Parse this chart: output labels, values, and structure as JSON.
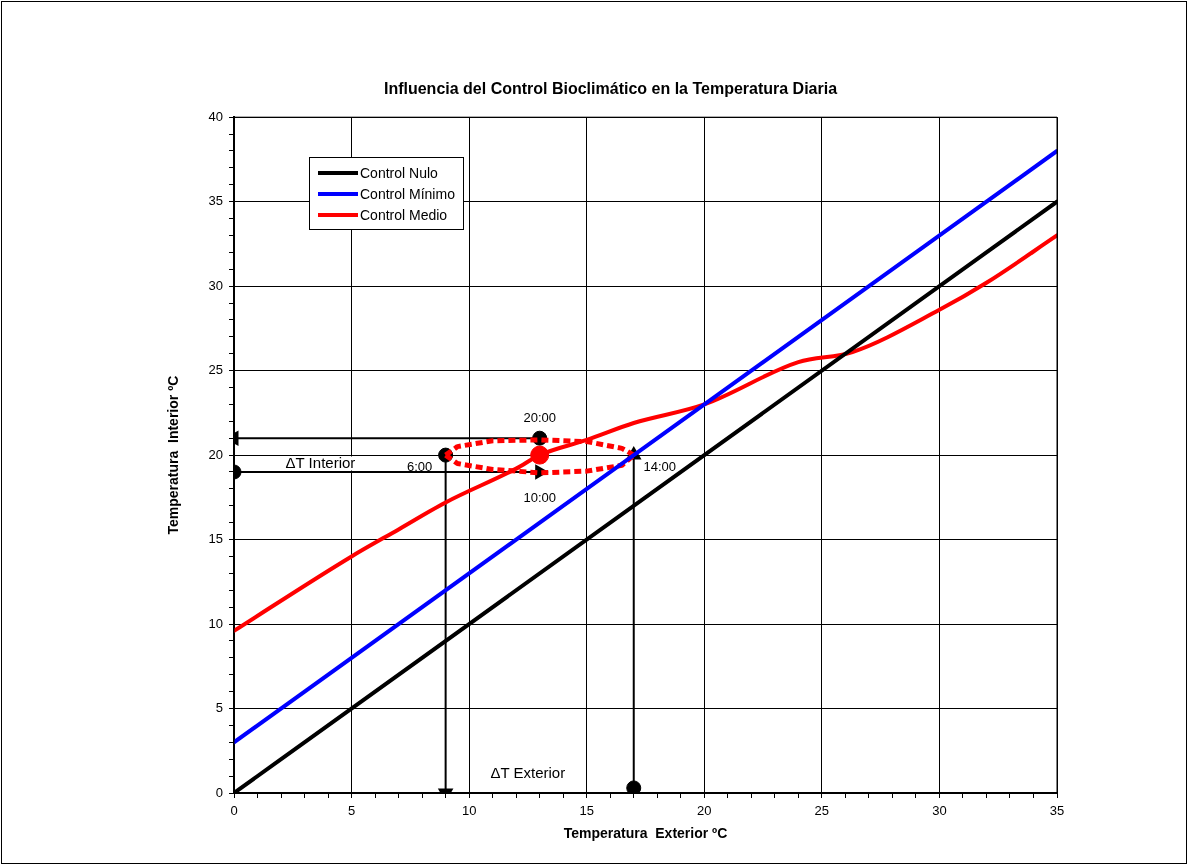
{
  "chart_data": {
    "type": "line",
    "title": "Influencia del Control Bioclimático en la Temperatura Diaria",
    "xlabel": "Temperatura  Exterior ºC",
    "ylabel": "Temperatura  Interior ºC",
    "xlim": [
      0,
      35
    ],
    "ylim": [
      0,
      40
    ],
    "xticks": [
      0,
      {
        "value": 1,
        "label": null
      },
      {
        "value": 2,
        "label": null
      },
      {
        "value": 3,
        "label": null
      },
      {
        "value": 4,
        "label": null
      },
      5,
      {
        "value": 6,
        "label": null
      },
      {
        "value": 7,
        "label": null
      },
      {
        "value": 8,
        "label": null
      },
      {
        "value": 9,
        "label": null
      },
      10,
      {
        "value": 11,
        "label": null
      },
      {
        "value": 12,
        "label": null
      },
      {
        "value": 13,
        "label": null
      },
      {
        "value": 14,
        "label": null
      },
      15,
      {
        "value": 16,
        "label": null
      },
      {
        "value": 17,
        "label": null
      },
      {
        "value": 18,
        "label": null
      },
      {
        "value": 19,
        "label": null
      },
      20,
      {
        "value": 21,
        "label": null
      },
      {
        "value": 22,
        "label": null
      },
      {
        "value": 23,
        "label": null
      },
      {
        "value": 24,
        "label": null
      },
      25,
      {
        "value": 26,
        "label": null
      },
      {
        "value": 27,
        "label": null
      },
      {
        "value": 28,
        "label": null
      },
      {
        "value": 29,
        "label": null
      },
      30,
      {
        "value": 31,
        "label": null
      },
      {
        "value": 32,
        "label": null
      },
      {
        "value": 33,
        "label": null
      },
      {
        "value": 34,
        "label": null
      },
      35
    ],
    "yticks": [
      0,
      {
        "value": 1,
        "label": null
      },
      {
        "value": 2,
        "label": null
      },
      {
        "value": 3,
        "label": null
      },
      {
        "value": 4,
        "label": null
      },
      5,
      {
        "value": 6,
        "label": null
      },
      {
        "value": 7,
        "label": null
      },
      {
        "value": 8,
        "label": null
      },
      {
        "value": 9,
        "label": null
      },
      10,
      {
        "value": 11,
        "label": null
      },
      {
        "value": 12,
        "label": null
      },
      {
        "value": 13,
        "label": null
      },
      {
        "value": 14,
        "label": null
      },
      15,
      {
        "value": 16,
        "label": null
      },
      {
        "value": 17,
        "label": null
      },
      {
        "value": 18,
        "label": null
      },
      {
        "value": 19,
        "label": null
      },
      20,
      {
        "value": 21,
        "label": null
      },
      {
        "value": 22,
        "label": null
      },
      {
        "value": 23,
        "label": null
      },
      {
        "value": 24,
        "label": null
      },
      25,
      {
        "value": 26,
        "label": null
      },
      {
        "value": 27,
        "label": null
      },
      {
        "value": 28,
        "label": null
      },
      {
        "value": 29,
        "label": null
      },
      30,
      {
        "value": 31,
        "label": null
      },
      {
        "value": 32,
        "label": null
      },
      {
        "value": 33,
        "label": null
      },
      {
        "value": 34,
        "label": null
      },
      35,
      {
        "value": 36,
        "label": null
      },
      {
        "value": 37,
        "label": null
      },
      {
        "value": 38,
        "label": null
      },
      {
        "value": 39,
        "label": null
      },
      40
    ],
    "grid": true,
    "legend": "top left",
    "marker": "none",
    "line_style": "solid",
    "series": [
      {
        "name": "Control Nulo",
        "color": "#000000",
        "x": [
          0,
          35
        ],
        "values": [
          0,
          35
        ]
      },
      {
        "name": "Control Mínimo",
        "color": "#0000ff",
        "x": [
          0,
          35
        ],
        "values": [
          3,
          38
        ]
      },
      {
        "name": "Control Medio",
        "color": "#ff0000",
        "x": [
          0,
          5,
          7,
          9,
          12,
          13,
          15,
          17,
          20,
          24,
          26.3,
          30,
          32,
          35
        ],
        "values": [
          9.6,
          14,
          15.6,
          17.2,
          19.2,
          20,
          20.9,
          21.9,
          23,
          25.5,
          26.1,
          28.6,
          30.2,
          33
        ]
      },
      {
        "color": "#ff0000",
        "line_style": "dotted",
        "x": [
          9,
          9.5,
          11,
          13,
          15,
          16.5,
          17
        ],
        "values": [
          20,
          20.5,
          20.85,
          20.9,
          20.8,
          20.4,
          20
        ]
      },
      {
        "color": "#ff0000",
        "line_style": "dotted",
        "x": [
          9,
          9.5,
          11,
          13,
          15,
          16.5,
          17
        ],
        "values": [
          20,
          19.5,
          19.15,
          18.95,
          19.05,
          19.4,
          20
        ]
      },
      {
        "type": "scatter",
        "marker": "circle",
        "color": "#ff0000",
        "x": [
          13
        ],
        "values": [
          20
        ]
      },
      {
        "color": "#000000",
        "marker": "triangle",
        "x": [
          13,
          0
        ],
        "values": [
          21,
          21
        ]
      },
      {
        "color": "#000000",
        "marker": "triangle",
        "x": [
          0,
          13
        ],
        "values": [
          19,
          19
        ]
      },
      {
        "color": "#000000",
        "marker": "triangle",
        "x": [
          9,
          9
        ],
        "values": [
          20,
          0
        ]
      },
      {
        "color": "#000000",
        "marker": "triangle",
        "x": [
          17,
          17
        ],
        "values": [
          0.3,
          20
        ]
      },
      {
        "type": "scatter",
        "marker": "circle",
        "color": "#000000",
        "x": [
          13,
          9,
          0,
          17
        ],
        "values": [
          21,
          20,
          19,
          0.3
        ]
      }
    ],
    "annotations": [
      {
        "text": "20:00",
        "x": 13,
        "y": 21
      },
      {
        "text": "6:00",
        "x": 9,
        "y": 20
      },
      {
        "text": "10:00",
        "x": 13,
        "y": 19
      },
      {
        "text": "14:00",
        "x": 17,
        "y": 20
      },
      "ΔT Interior",
      "ΔT Exterior"
    ]
  }
}
